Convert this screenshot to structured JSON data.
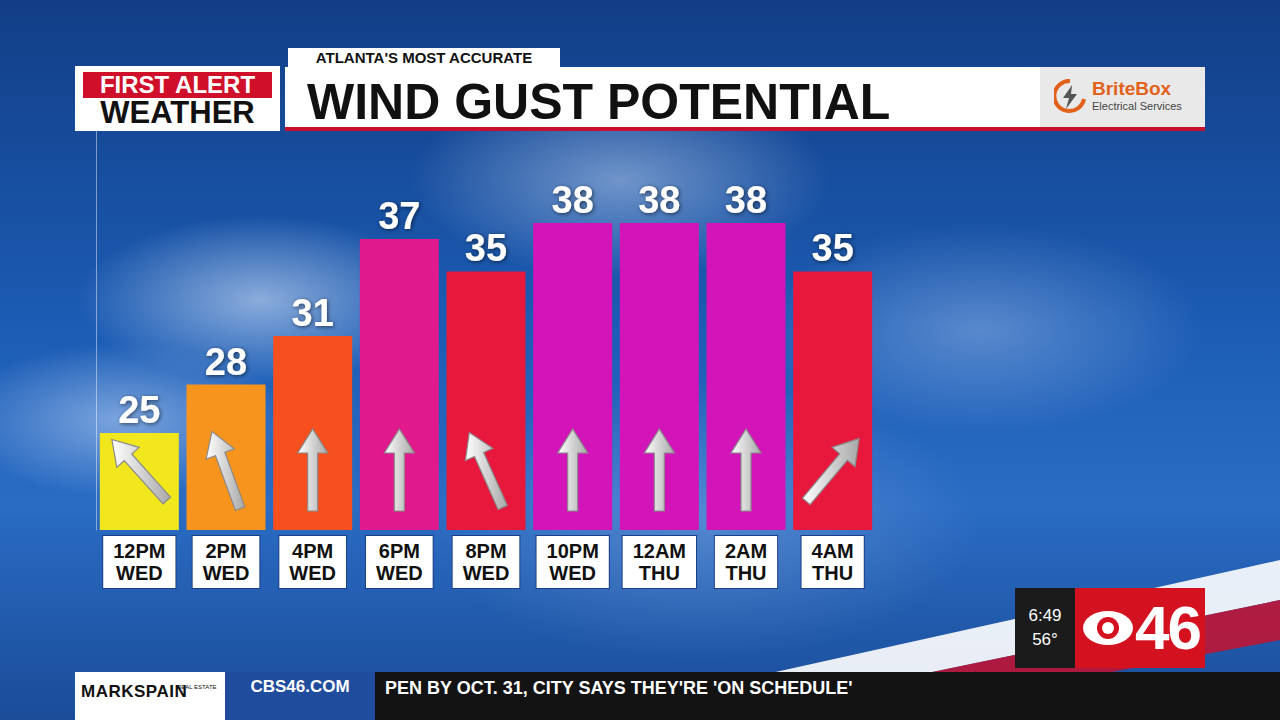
{
  "chart_data": {
    "type": "bar",
    "title": "WIND GUST POTENTIAL",
    "categories": [
      "12PM WED",
      "2PM WED",
      "4PM WED",
      "6PM WED",
      "8PM WED",
      "10PM WED",
      "12AM THU",
      "2AM THU",
      "4AM THU"
    ],
    "values": [
      25,
      28,
      31,
      37,
      35,
      38,
      38,
      38,
      35
    ],
    "colors": [
      "#f2e61c",
      "#f7941d",
      "#f5501e",
      "#e0198c",
      "#e8173c",
      "#d214b8",
      "#d214b8",
      "#d214b8",
      "#e8173c"
    ],
    "arrow_directions_deg": [
      -42,
      -20,
      0,
      0,
      -24,
      0,
      0,
      0,
      40
    ],
    "ylim": [
      19,
      44
    ],
    "data_labels": true,
    "tick_labels": "x",
    "grid": false
  },
  "overlay": {
    "tagline": "ATLANTA'S MOST ACCURATE",
    "brand": [
      "FIRST ALERT",
      "WEATHER"
    ],
    "sponsor": [
      "BriteBox",
      "Electrical Services"
    ],
    "clock": "6:49",
    "temperature": "56°",
    "station": "46",
    "footer_sponsor": [
      "MARKSPAIN",
      "REAL ESTATE"
    ],
    "website": "CBS46.COM",
    "ticker": "PEN BY OCT. 31, CITY SAYS THEY'RE 'ON SCHEDULE'"
  }
}
